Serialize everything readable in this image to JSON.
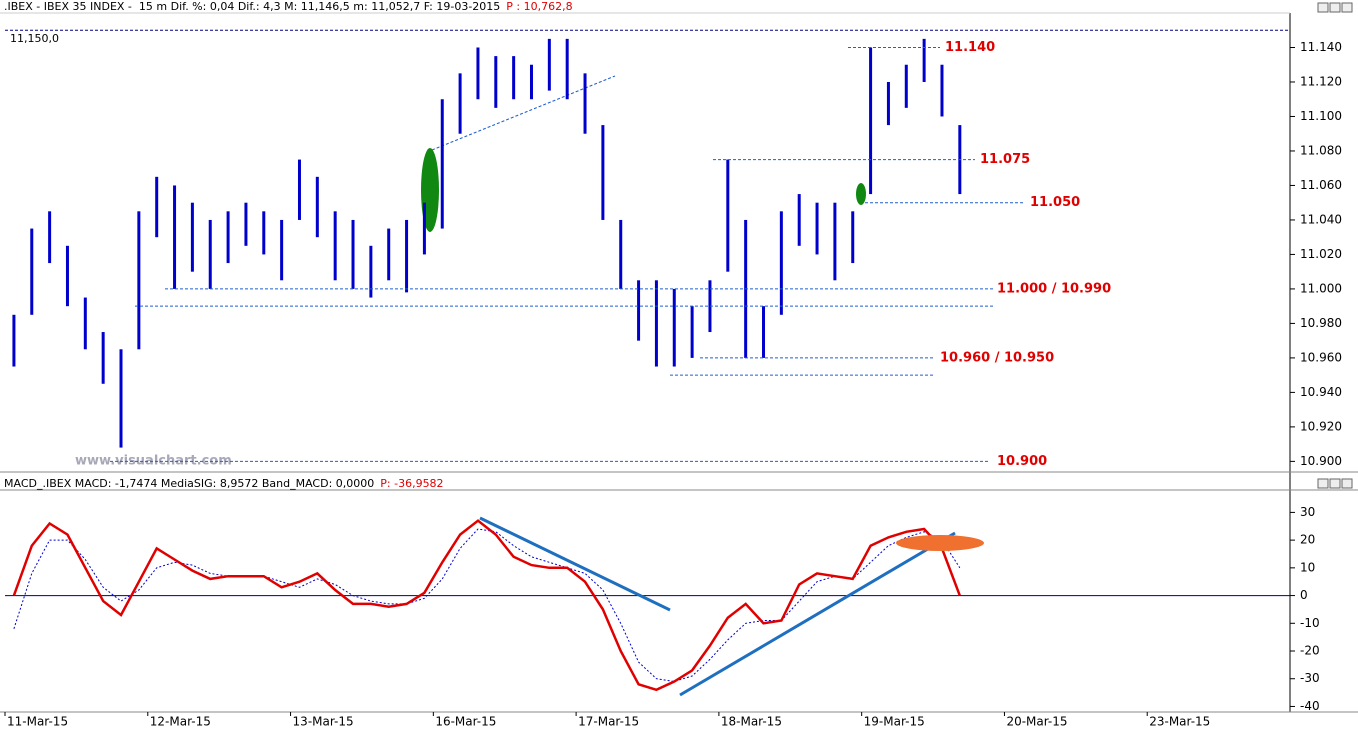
{
  "chart_data": [
    {
      "type": "range_bar",
      "header": ".IBEX - IBEX 35 INDEX -  15 m Dif. %: 0,04 Dif.: 4,3 M: 11,146,5 m: 11,052,7 F: 19-03-2015",
      "header_price": "P : 10,762,8",
      "watermark": "www.visualchart.com",
      "color": "#0000cc",
      "ylim": [
        10895,
        11160
      ],
      "yticks": [
        {
          "value": 10900,
          "label": "10.900"
        },
        {
          "value": 10920,
          "label": "10.920"
        },
        {
          "value": 10940,
          "label": "10.940"
        },
        {
          "value": 10960,
          "label": "10.960"
        },
        {
          "value": 10980,
          "label": "10.980"
        },
        {
          "value": 11000,
          "label": "11.000"
        },
        {
          "value": 11020,
          "label": "11.020"
        },
        {
          "value": 11040,
          "label": "11.040"
        },
        {
          "value": 11060,
          "label": "11.060"
        },
        {
          "value": 11080,
          "label": "11.080"
        },
        {
          "value": 11100,
          "label": "11.100"
        },
        {
          "value": 11120,
          "label": "11.120"
        },
        {
          "value": 11140,
          "label": "11.140"
        }
      ],
      "high": [
        10985,
        11035,
        11045,
        11025,
        10995,
        10975,
        10965,
        11045,
        11065,
        11060,
        11050,
        11040,
        11045,
        11050,
        11045,
        11040,
        11075,
        11065,
        11045,
        11040,
        11025,
        11035,
        11040,
        11050,
        11110,
        11125,
        11140,
        11135,
        11135,
        11130,
        11145,
        11145,
        11125,
        11095,
        11040,
        11005,
        11005,
        11000,
        10990,
        11005,
        11075,
        11040,
        10990,
        11045,
        11055,
        11050,
        11050,
        11045,
        11140,
        11120,
        11130,
        11145,
        11130,
        11095,
        null,
        null,
        null,
        null,
        null,
        null,
        null,
        null,
        null,
        null,
        null,
        null,
        null,
        null,
        null,
        null,
        null,
        null
      ],
      "low": [
        10955,
        10985,
        11015,
        10990,
        10965,
        10945,
        10908,
        10965,
        11030,
        11000,
        11010,
        11000,
        11015,
        11025,
        11020,
        11005,
        11040,
        11030,
        11005,
        11000,
        10995,
        11005,
        10998,
        11020,
        11035,
        11090,
        11110,
        11105,
        11110,
        11110,
        11115,
        11110,
        11090,
        11040,
        11000,
        10970,
        10955,
        10955,
        10960,
        10975,
        11010,
        10960,
        10960,
        10985,
        11025,
        11020,
        11005,
        11015,
        11055,
        11095,
        11105,
        11120,
        11100,
        11055,
        null,
        null,
        null,
        null,
        null,
        null,
        null,
        null,
        null,
        null,
        null,
        null,
        null,
        null,
        null,
        null,
        null,
        null
      ],
      "levels": [
        {
          "label": "11,150,0",
          "values": [
            11150
          ]
        },
        {
          "label": "11.140",
          "values": [
            11140
          ]
        },
        {
          "label": "11.075",
          "values": [
            11075
          ]
        },
        {
          "label": "11.050",
          "values": [
            11050
          ]
        },
        {
          "label": "11.000 / 10.990",
          "values": [
            11000,
            10990
          ]
        },
        {
          "label": "10.960 / 10.950",
          "values": [
            10960,
            10950
          ]
        },
        {
          "label": "10.900",
          "values": [
            10900
          ]
        }
      ]
    },
    {
      "type": "line",
      "header": "MACD_.IBEX MACD: -1,7474 MediaSIG: 8,9572 Band_MACD: 0,0000",
      "header_price": "P: -36,9582",
      "ylim": [
        -42,
        37
      ],
      "yticks": [
        -40,
        -30,
        -20,
        -10,
        0,
        10,
        20,
        30
      ],
      "categories": [
        "11-Mar-15",
        null,
        null,
        null,
        null,
        null,
        null,
        null,
        "12-Mar-15",
        null,
        null,
        null,
        null,
        null,
        null,
        null,
        "13-Mar-15",
        null,
        null,
        null,
        null,
        null,
        null,
        null,
        "16-Mar-15",
        null,
        null,
        null,
        null,
        null,
        null,
        null,
        "17-Mar-15",
        null,
        null,
        null,
        null,
        null,
        null,
        null,
        "18-Mar-15",
        null,
        null,
        null,
        null,
        null,
        null,
        null,
        "19-Mar-15",
        null,
        null,
        null,
        null,
        null,
        null,
        null,
        "20-Mar-15",
        null,
        null,
        null,
        null,
        null,
        null,
        null,
        "23-Mar-15",
        null,
        null,
        null,
        null,
        null,
        null,
        null
      ],
      "series": [
        {
          "color": "#e00000",
          "dash": false,
          "values": [
            0,
            18,
            26,
            22,
            10,
            -2,
            -7,
            5,
            17,
            13,
            9,
            6,
            7,
            7,
            7,
            3,
            5,
            8,
            2,
            -3,
            -3,
            -4,
            -3,
            1,
            12,
            22,
            27,
            22,
            14,
            11,
            10,
            10,
            5,
            -5,
            -20,
            -32,
            -34,
            -31,
            -27,
            -18,
            -8,
            -3,
            -10,
            -9,
            4,
            8,
            7,
            6,
            18,
            21,
            23,
            24,
            17,
            0,
            null,
            null,
            null,
            null,
            null,
            null,
            null,
            null,
            null,
            null,
            null,
            null,
            null,
            null,
            null,
            null,
            null,
            null
          ]
        },
        {
          "color": "#0000cc",
          "dash": true,
          "values": [
            -12,
            8,
            20,
            20,
            13,
            3,
            -2,
            2,
            10,
            12,
            11,
            8,
            7,
            7,
            7,
            5,
            3,
            6,
            4,
            0,
            -2,
            -3,
            -3,
            -1,
            6,
            17,
            24,
            23,
            18,
            14,
            12,
            10,
            8,
            2,
            -10,
            -24,
            -30,
            -31,
            -29,
            -23,
            -16,
            -10,
            -9,
            -9,
            -2,
            5,
            7,
            6,
            12,
            18,
            21,
            23,
            20,
            10,
            null,
            null,
            null,
            null,
            null,
            null,
            null,
            null,
            null,
            null,
            null,
            null,
            null,
            null,
            null,
            null,
            null,
            null
          ]
        }
      ]
    }
  ]
}
